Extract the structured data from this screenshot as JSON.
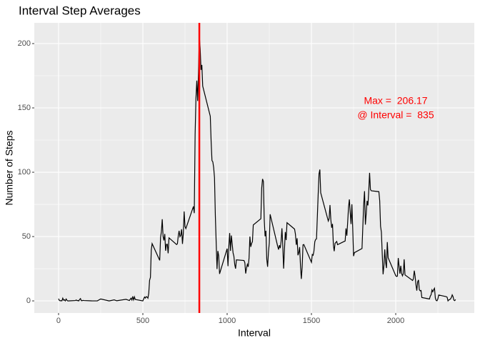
{
  "chart_data": {
    "type": "line",
    "title": "Interval Step Averages",
    "x_label": "Interval",
    "y_label": "Number of Steps",
    "color": "#000000",
    "x": [
      0,
      5,
      10,
      15,
      20,
      25,
      30,
      35,
      40,
      45,
      50,
      55,
      100,
      105,
      110,
      115,
      120,
      125,
      130,
      135,
      140,
      145,
      150,
      200,
      230,
      250,
      300,
      330,
      345,
      400,
      420,
      430,
      435,
      440,
      445,
      450,
      455,
      500,
      505,
      510,
      515,
      520,
      525,
      530,
      535,
      540,
      545,
      550,
      555,
      600,
      605,
      610,
      615,
      620,
      625,
      630,
      635,
      640,
      645,
      650,
      655,
      700,
      705,
      710,
      715,
      720,
      725,
      730,
      735,
      740,
      745,
      750,
      755,
      800,
      805,
      810,
      815,
      820,
      825,
      830,
      835,
      840,
      845,
      850,
      855,
      900,
      905,
      910,
      915,
      920,
      925,
      930,
      935,
      940,
      945,
      950,
      955,
      1000,
      1005,
      1010,
      1015,
      1020,
      1025,
      1030,
      1035,
      1040,
      1045,
      1050,
      1055,
      1100,
      1105,
      1110,
      1115,
      1120,
      1125,
      1130,
      1135,
      1140,
      1145,
      1150,
      1155,
      1200,
      1205,
      1210,
      1215,
      1220,
      1225,
      1230,
      1235,
      1240,
      1245,
      1250,
      1255,
      1300,
      1305,
      1310,
      1315,
      1320,
      1325,
      1330,
      1335,
      1340,
      1345,
      1350,
      1355,
      1400,
      1405,
      1410,
      1415,
      1420,
      1425,
      1430,
      1435,
      1440,
      1445,
      1450,
      1455,
      1500,
      1505,
      1510,
      1515,
      1520,
      1525,
      1530,
      1535,
      1540,
      1545,
      1550,
      1555,
      1600,
      1605,
      1610,
      1615,
      1620,
      1625,
      1630,
      1635,
      1640,
      1645,
      1650,
      1655,
      1700,
      1705,
      1710,
      1715,
      1720,
      1725,
      1730,
      1735,
      1740,
      1745,
      1750,
      1755,
      1800,
      1805,
      1810,
      1815,
      1820,
      1825,
      1830,
      1835,
      1840,
      1845,
      1850,
      1855,
      1900,
      1905,
      1910,
      1915,
      1920,
      1925,
      1930,
      1935,
      1940,
      1945,
      1950,
      1955,
      2000,
      2005,
      2010,
      2015,
      2020,
      2025,
      2030,
      2035,
      2040,
      2045,
      2050,
      2055,
      2100,
      2105,
      2110,
      2115,
      2120,
      2125,
      2130,
      2135,
      2140,
      2145,
      2150,
      2155,
      2200,
      2205,
      2210,
      2215,
      2220,
      2225,
      2230,
      2235,
      2240,
      2245,
      2250,
      2255,
      2300,
      2305,
      2310,
      2315,
      2320,
      2325,
      2330,
      2335,
      2340,
      2345,
      2350,
      2355
    ],
    "values": [
      1.7,
      0.3,
      0.1,
      0.2,
      0.1,
      2.1,
      0.5,
      0.9,
      0,
      1.5,
      0.4,
      0,
      0.3,
      0.7,
      0.2,
      0.3,
      0,
      1.1,
      1.8,
      0.2,
      0.2,
      0.4,
      0.3,
      0,
      0,
      1.5,
      0,
      0.8,
      0.1,
      1.2,
      0.3,
      2.1,
      0.7,
      3.5,
      0.8,
      3.1,
      1.1,
      0,
      1.6,
      3,
      2.2,
      3.3,
      3,
      2.1,
      6,
      16,
      18.3,
      39.5,
      44.5,
      31.5,
      49.3,
      53.8,
      63.5,
      50,
      47,
      52,
      39,
      44,
      44,
      37,
      49,
      43.8,
      44.4,
      50.5,
      54.5,
      49.9,
      51,
      55.7,
      44.3,
      52.3,
      69.5,
      57.8,
      56.2,
      73.4,
      68.2,
      129.4,
      157.5,
      171.2,
      155.4,
      177.3,
      206.17,
      195.9,
      179.6,
      183.4,
      167,
      143.5,
      124,
      109.1,
      108.1,
      103.7,
      95.9,
      66.2,
      45.2,
      24.8,
      38.8,
      35,
      21,
      40.6,
      27,
      42.4,
      52.7,
      38.9,
      50.8,
      44.3,
      37.4,
      34.7,
      28.3,
      25.1,
      31.9,
      31.4,
      29.7,
      21.3,
      25.5,
      28.4,
      26.5,
      33.4,
      50,
      42,
      44.6,
      46,
      59,
      63.9,
      87.7,
      94.8,
      92.8,
      63.4,
      50.2,
      54.5,
      32.4,
      26.5,
      37.7,
      45,
      67.3,
      42.3,
      39.9,
      43.3,
      41,
      46.2,
      56.4,
      42.8,
      25.1,
      39.9,
      53.5,
      47.3,
      60.8,
      55.8,
      51.9,
      43.6,
      48.7,
      35.5,
      37.5,
      41.8,
      27.5,
      17.1,
      26.1,
      43.6,
      43.8,
      30,
      36.1,
      35.5,
      38.8,
      46,
      47.8,
      48.1,
      65.3,
      82.9,
      98.7,
      102.1,
      84,
      62.1,
      64.1,
      74.5,
      63.2,
      56.9,
      59.8,
      43.9,
      38.6,
      44.7,
      45.5,
      46.2,
      43.7,
      46.6,
      56.3,
      50.7,
      61.2,
      72.7,
      78.9,
      68.9,
      59.7,
      75.1,
      56.5,
      34.8,
      37.5,
      40.7,
      58,
      74.7,
      85.3,
      59.3,
      67.8,
      77.7,
      74.2,
      85.3,
      99.5,
      86.6,
      85.6,
      84.9,
      77.8,
      58,
      53.4,
      36.3,
      20.7,
      27.4,
      40,
      30.2,
      25.5,
      45.7,
      33.5,
      19.6,
      19,
      19.3,
      33.3,
      26.8,
      21.2,
      27.3,
      21.3,
      19.5,
      21.3,
      32.3,
      20.2,
      15.9,
      17.2,
      23.5,
      19.2,
      12.5,
      8,
      14.7,
      16.3,
      8.7,
      7.8,
      8.1,
      2.6,
      1.5,
      3.7,
      4.8,
      8.5,
      7.1,
      8.7,
      9.8,
      2.2,
      0.3,
      0.1,
      1.6,
      4.6,
      3.3,
      2.8,
      0,
      0.8,
      1,
      1.6,
      2.6,
      4.7,
      3.3,
      0.6,
      0.2,
      1.1
    ],
    "xlim": [
      -144,
      2466
    ],
    "ylim": [
      -9.4,
      216.1
    ],
    "xticks": [
      0,
      500,
      1000,
      1500,
      2000
    ],
    "yticks": [
      0,
      50,
      100,
      150,
      200
    ],
    "x_minor_ticks": [
      250,
      750,
      1250,
      1750,
      2250
    ],
    "y_minor_ticks": [
      25,
      75,
      125,
      175
    ],
    "grid": true,
    "vline": {
      "x": 835,
      "color": "#ff0000"
    },
    "annotations": [
      {
        "text": "Max =  206.17",
        "x": 2000,
        "y": 155,
        "color": "#ff0000"
      },
      {
        "text": "@ Interval =  835",
        "x": 2000,
        "y": 144,
        "color": "#ff0000"
      }
    ]
  }
}
